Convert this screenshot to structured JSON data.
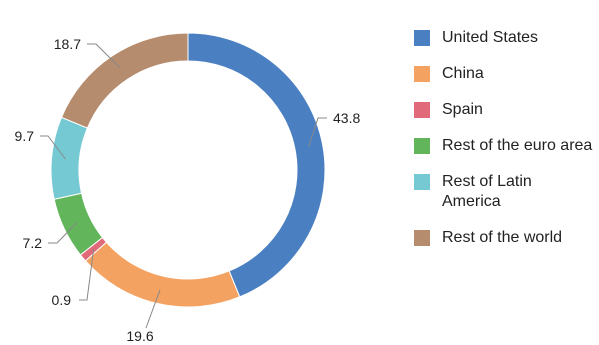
{
  "chart_data": {
    "type": "pie",
    "donut": true,
    "categories": [
      "United States",
      "China",
      "Spain",
      "Rest of the euro area",
      "Rest of Latin America",
      "Rest of the world"
    ],
    "values": [
      43.8,
      19.6,
      0.9,
      7.2,
      9.7,
      18.7
    ],
    "data_labels": [
      "43.8",
      "19.6",
      "0.9",
      "7.2",
      "9.7",
      "18.7"
    ],
    "colors": [
      "#4a7fc1",
      "#f4a261",
      "#e0697a",
      "#62b55a",
      "#74c9d3",
      "#b68c6e"
    ],
    "legend_position": "right"
  },
  "legend": {
    "items": [
      {
        "label": "United States",
        "color": "#4a7fc1"
      },
      {
        "label": "China",
        "color": "#f4a261"
      },
      {
        "label": "Spain",
        "color": "#e0697a"
      },
      {
        "label": "Rest of the euro area",
        "color": "#62b55a"
      },
      {
        "label": "Rest of Latin America",
        "color": "#74c9d3"
      },
      {
        "label": "Rest of the world",
        "color": "#b68c6e"
      }
    ]
  }
}
